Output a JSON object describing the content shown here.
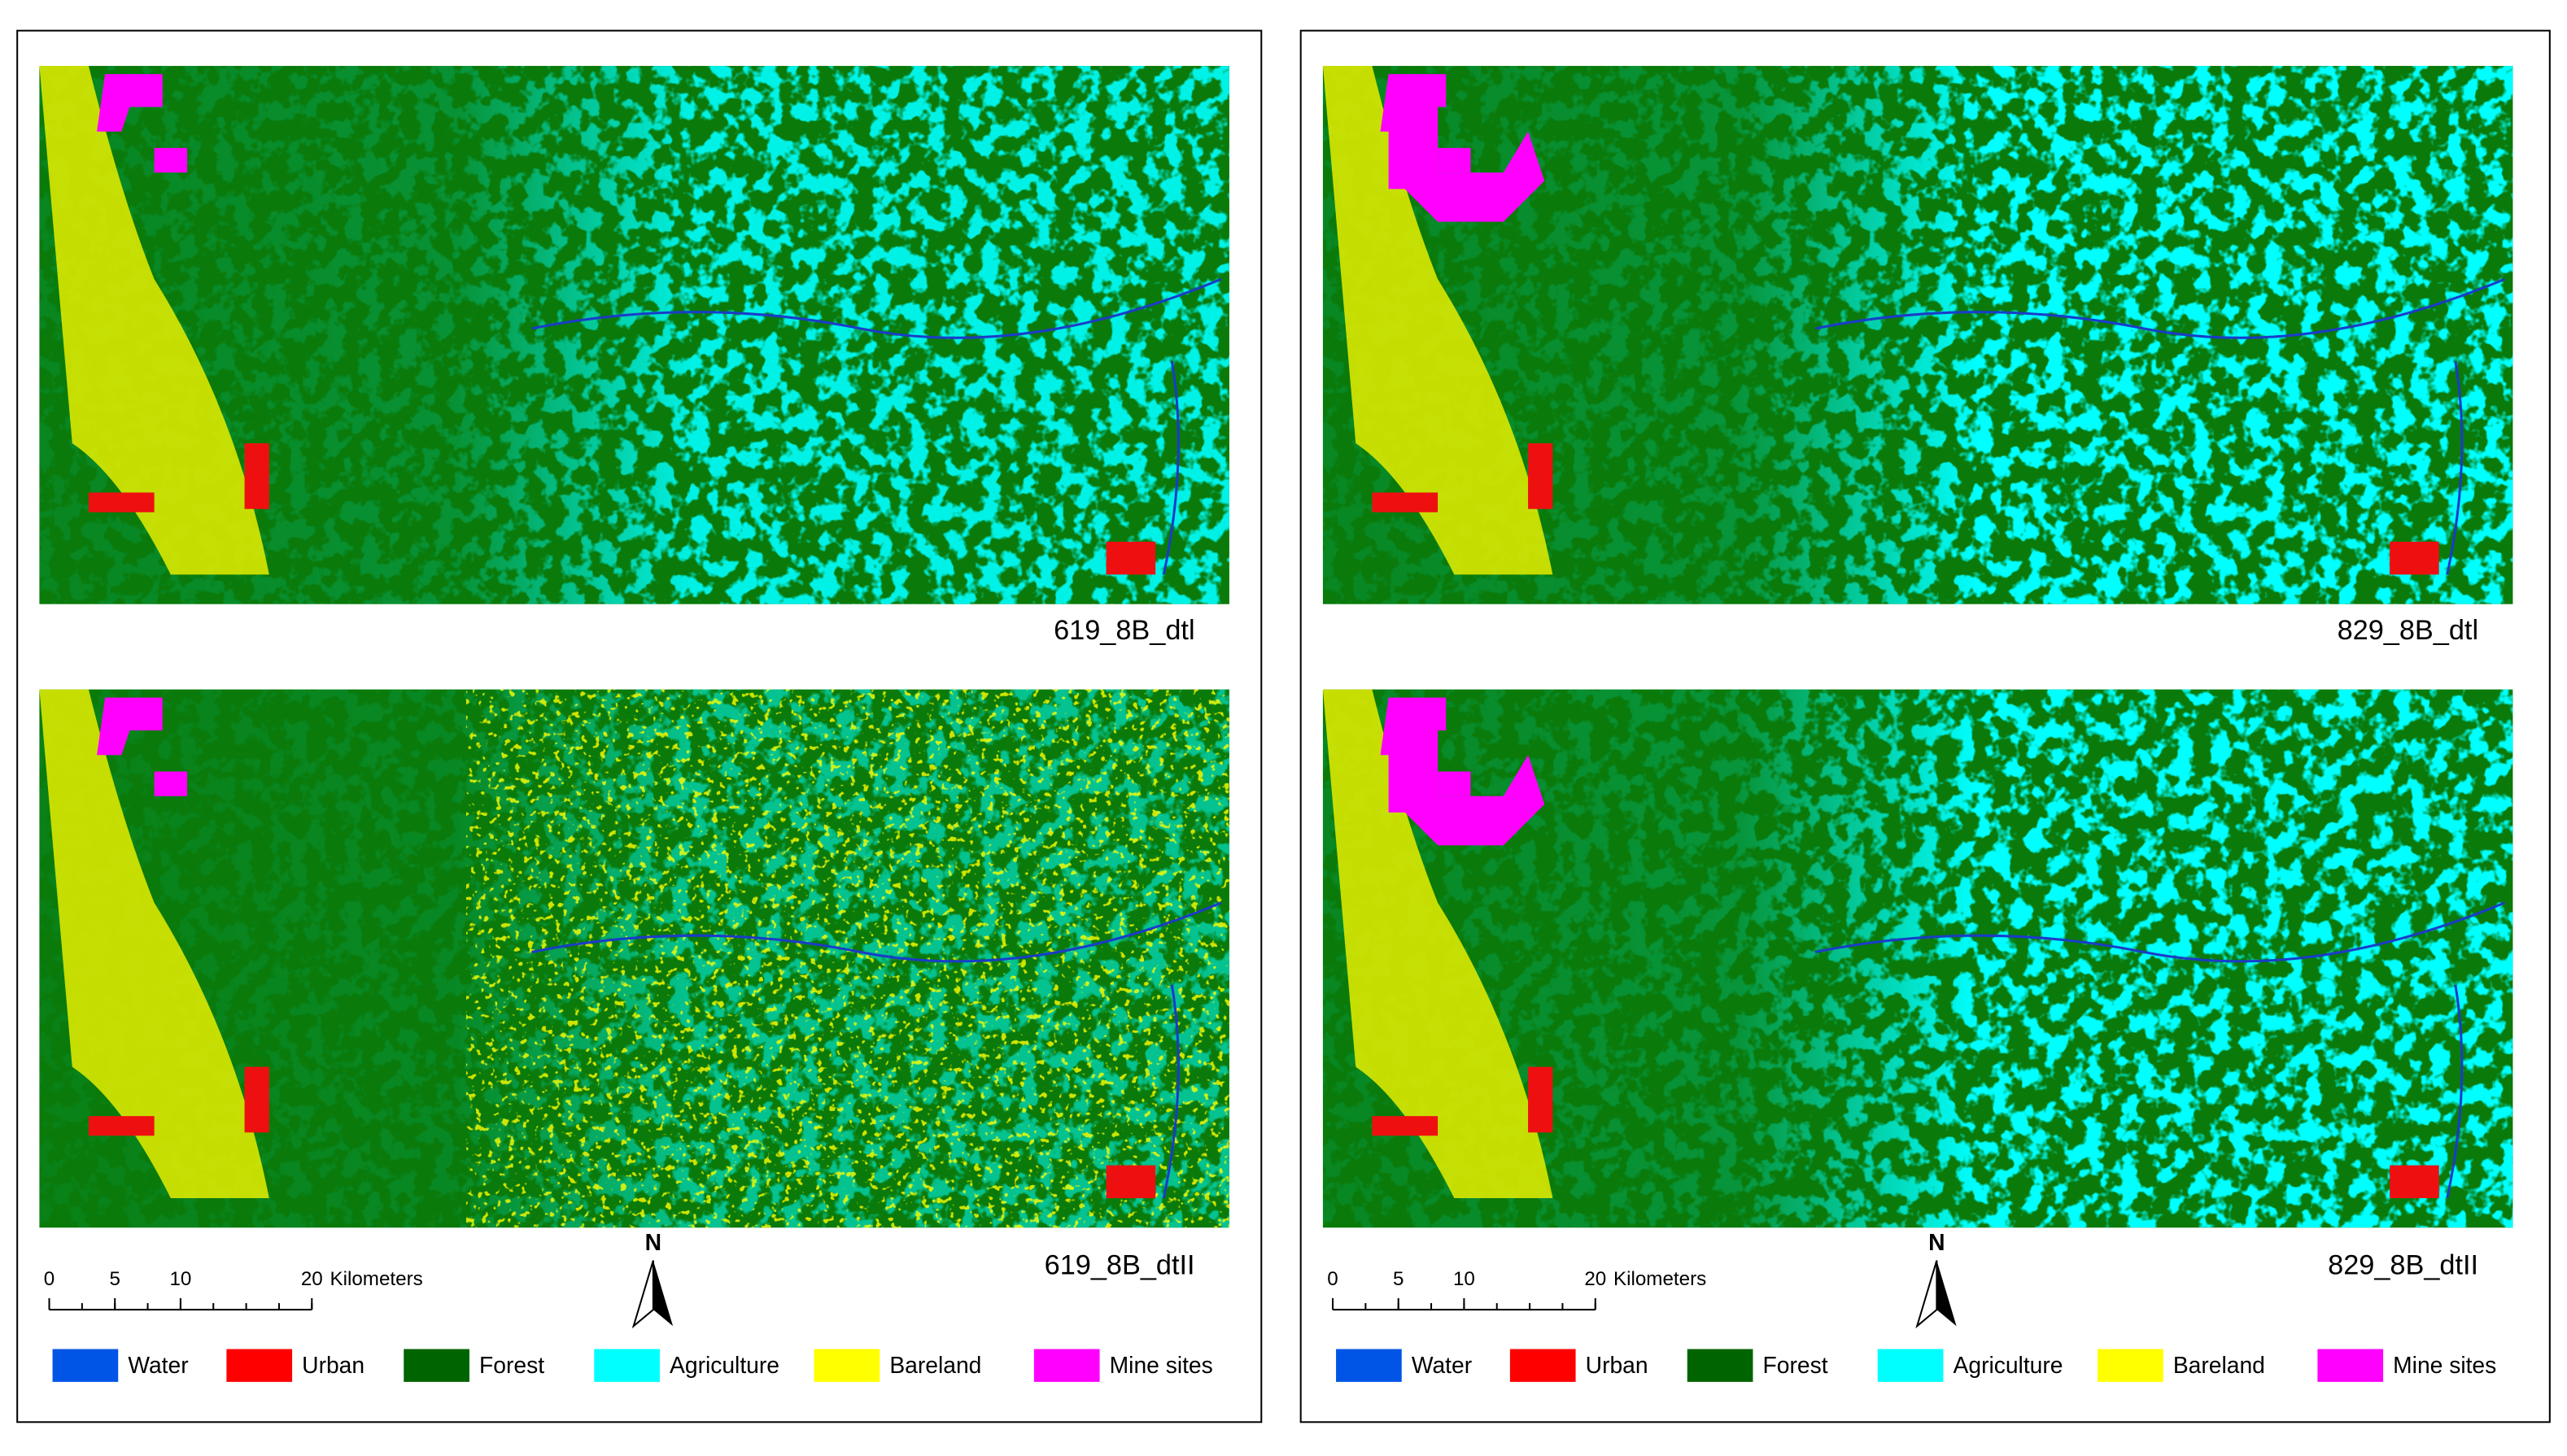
{
  "panels": [
    {
      "maps": [
        {
          "label": "619_8B_dtl"
        },
        {
          "label": "619_8B_dtII"
        }
      ],
      "scale_bar": {
        "ticks": [
          0,
          5,
          10,
          20
        ],
        "unit": "Kilometers"
      },
      "north": "N",
      "legend": [
        {
          "name": "Water",
          "color": "#0055e6"
        },
        {
          "name": "Urban",
          "color": "#ff0000"
        },
        {
          "name": "Forest",
          "color": "#006400"
        },
        {
          "name": "Agriculture",
          "color": "#00ffff"
        },
        {
          "name": "Bareland",
          "color": "#ffff00"
        },
        {
          "name": "Mine sites",
          "color": "#ff00ff"
        }
      ]
    },
    {
      "maps": [
        {
          "label": "829_8B_dtl"
        },
        {
          "label": "829_8B_dtII"
        }
      ],
      "scale_bar": {
        "ticks": [
          0,
          5,
          10,
          20
        ],
        "unit": "Kilometers"
      },
      "north": "N",
      "legend": [
        {
          "name": "Water",
          "color": "#0055e6"
        },
        {
          "name": "Urban",
          "color": "#ff0000"
        },
        {
          "name": "Forest",
          "color": "#006400"
        },
        {
          "name": "Agriculture",
          "color": "#00ffff"
        },
        {
          "name": "Bareland",
          "color": "#ffff00"
        },
        {
          "name": "Mine sites",
          "color": "#ff00ff"
        }
      ]
    }
  ]
}
